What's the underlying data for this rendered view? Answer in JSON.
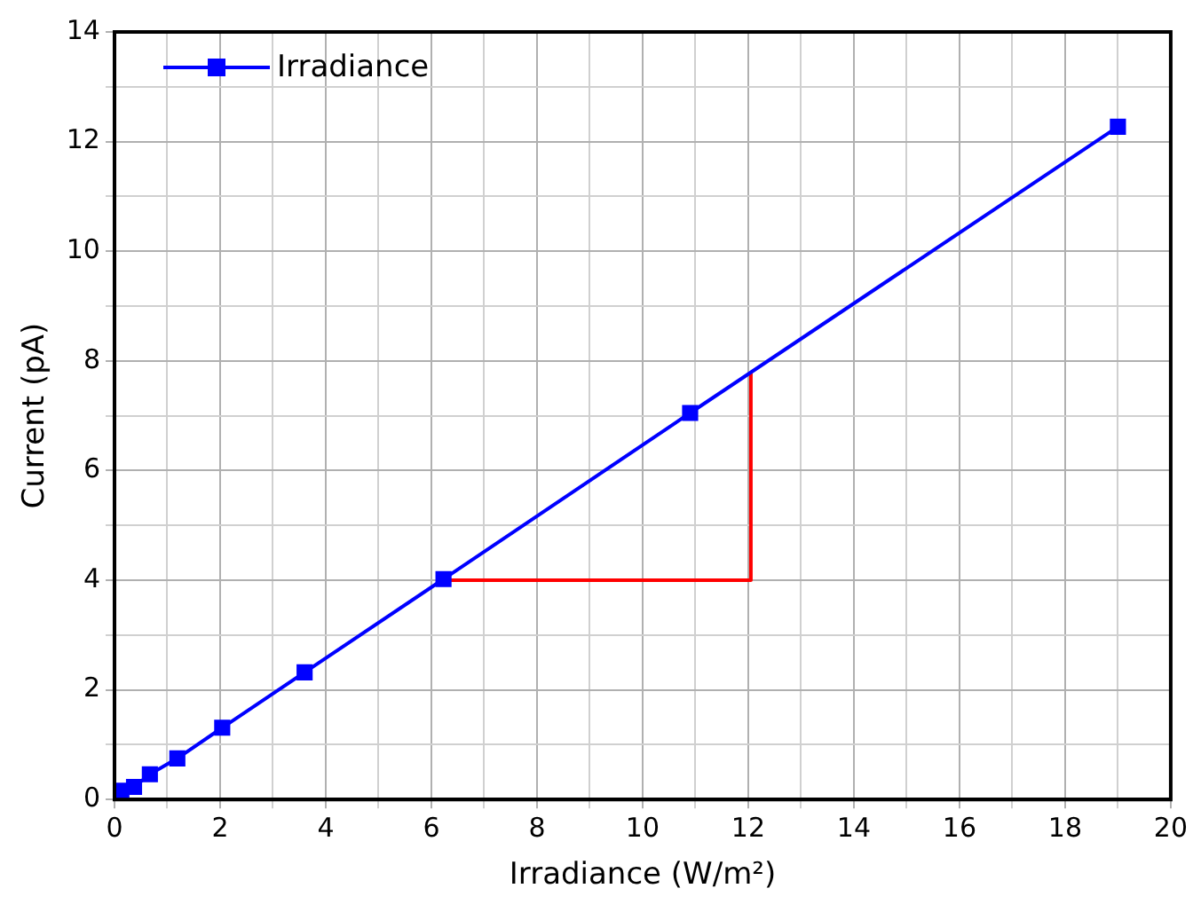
{
  "chart_data": {
    "type": "line",
    "xlabel": "Irradiance (W/m²)",
    "ylabel": "Current (pA)",
    "xlim": [
      0,
      20
    ],
    "ylim": [
      0,
      14
    ],
    "xticks": [
      0,
      {
        "value": 1,
        "label": null
      },
      2,
      {
        "value": 3,
        "label": null
      },
      4,
      {
        "value": 5,
        "label": null
      },
      6,
      {
        "value": 7,
        "label": null
      },
      8,
      {
        "value": 9,
        "label": null
      },
      10,
      {
        "value": 11,
        "label": null
      },
      12,
      {
        "value": 13,
        "label": null
      },
      14,
      {
        "value": 15,
        "label": null
      },
      16,
      {
        "value": 17,
        "label": null
      },
      18,
      {
        "value": 19,
        "label": null
      },
      20
    ],
    "yticks": [
      0,
      {
        "value": 1,
        "label": null
      },
      2,
      {
        "value": 3,
        "label": null
      },
      4,
      {
        "value": 5,
        "label": null
      },
      6,
      {
        "value": 7,
        "label": null
      },
      8,
      {
        "value": 9,
        "label": null
      },
      10,
      {
        "value": 11,
        "label": null
      },
      12,
      {
        "value": 13,
        "label": null
      },
      14
    ],
    "grid": true,
    "legend": "top left",
    "marker": "square",
    "line_style": "solid",
    "series": [
      {
        "name": "Irradiance",
        "color": "#0000ff",
        "x": [
          0.13,
          0.37,
          0.67,
          1.19,
          2.04,
          3.6,
          6.23,
          10.9,
          19.0
        ],
        "values": [
          0.16,
          0.23,
          0.46,
          0.75,
          1.31,
          2.32,
          4.02,
          7.05,
          12.27
        ]
      },
      {
        "color": "#ff0000",
        "marker": "none",
        "x": [
          6.3,
          12.05,
          12.05
        ],
        "values": [
          4.0,
          4.0,
          7.8
        ]
      }
    ]
  }
}
